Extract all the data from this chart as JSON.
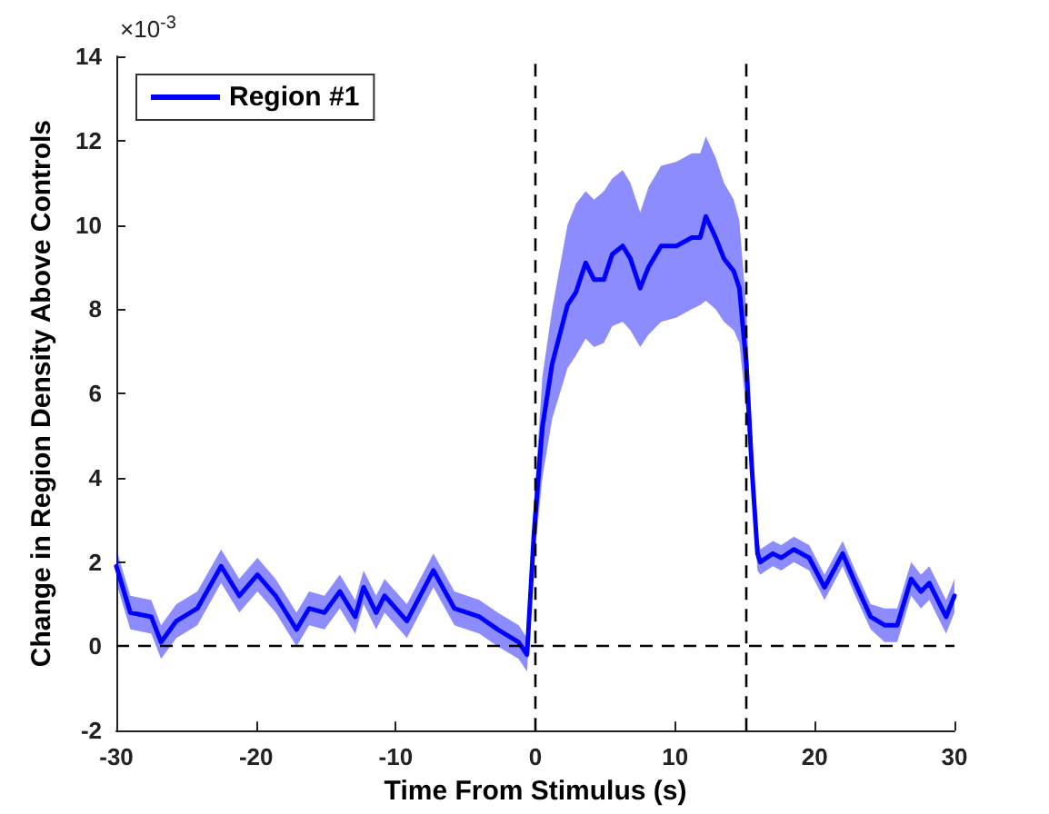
{
  "chart_data": {
    "type": "line",
    "xlabel": "Time From Stimulus (s)",
    "ylabel": "Change in Region Density Above Controls",
    "annotations": [
      "×10$^{-3}$"
    ],
    "xlim": [
      -30,
      30
    ],
    "xticks": [
      -30,
      -20,
      -10,
      0,
      10,
      20,
      30
    ],
    "ylim": [
      -2,
      14
    ],
    "yticks": [
      -2,
      0,
      2,
      4,
      6,
      8,
      10,
      12,
      14
    ],
    "grid": false,
    "legend": "top left",
    "marker": "none",
    "line_style": "solid",
    "ref_lines": [
      {
        "axis": "y",
        "value": 0,
        "label": null,
        "color": "#000000",
        "line_style": "dashed"
      },
      {
        "axis": "x",
        "value": 0,
        "label": null,
        "color": "#000000",
        "line_style": "dashed"
      },
      {
        "axis": "x",
        "value": 15,
        "label": null,
        "color": "#000000",
        "line_style": "dashed"
      }
    ],
    "series": [
      {
        "name": "Region #1",
        "color": "#0000ff",
        "x": [
          -30,
          -29,
          -27.5,
          -26.8,
          -25.7,
          -24.2,
          -22.5,
          -21.2,
          -19.9,
          -18.6,
          -17.1,
          -16.2,
          -15.1,
          -14,
          -12.9,
          -12.3,
          -11.4,
          -10.8,
          -9.2,
          -7.3,
          -5.8,
          -4,
          -2.7,
          -1.2,
          -0.6,
          -0.1,
          0.5,
          1.2,
          2.3,
          2.9,
          3.6,
          4.2,
          4.9,
          5.5,
          6.25,
          6.8,
          7.5,
          8.1,
          9,
          10.1,
          11.2,
          11.8,
          12.2,
          12.9,
          13.5,
          14.2,
          14.6,
          15.1,
          15.5,
          15.9,
          16.1,
          17,
          17.6,
          18.5,
          19.6,
          20.7,
          22,
          22.9,
          24,
          25,
          25.9,
          26.9,
          27.6,
          28.2,
          29.4,
          30
        ],
        "values": [
          1.9,
          0.8,
          0.7,
          0.1,
          0.6,
          0.9,
          1.9,
          1.2,
          1.7,
          1.2,
          0.4,
          0.9,
          0.8,
          1.3,
          0.7,
          1.4,
          0.8,
          1.2,
          0.6,
          1.8,
          0.9,
          0.7,
          0.4,
          0.1,
          -0.2,
          2.7,
          5.2,
          6.7,
          8.1,
          8.4,
          9.1,
          8.7,
          8.7,
          9.3,
          9.5,
          9.2,
          8.5,
          9.0,
          9.5,
          9.5,
          9.7,
          9.7,
          10.2,
          9.7,
          9.2,
          8.9,
          8.5,
          6.7,
          4.2,
          2.2,
          2.0,
          2.2,
          2.1,
          2.3,
          2.1,
          1.4,
          2.2,
          1.5,
          0.7,
          0.5,
          0.5,
          1.6,
          1.3,
          1.5,
          0.7,
          1.2
        ],
        "lower": [
          1.5,
          0.4,
          0.3,
          -0.3,
          0.2,
          0.5,
          1.5,
          0.8,
          1.3,
          0.8,
          0.0,
          0.5,
          0.4,
          0.9,
          0.3,
          1.0,
          0.4,
          0.8,
          0.2,
          1.4,
          0.5,
          0.3,
          0.0,
          -0.3,
          -0.6,
          2.0,
          4.0,
          5.4,
          6.6,
          6.9,
          7.3,
          7.1,
          7.2,
          7.6,
          7.7,
          7.5,
          7.1,
          7.4,
          7.7,
          7.8,
          8.0,
          8.1,
          8.2,
          8.0,
          7.7,
          7.5,
          7.2,
          5.6,
          3.6,
          1.8,
          1.7,
          1.9,
          1.8,
          2.0,
          1.8,
          1.1,
          1.9,
          1.2,
          0.4,
          0.1,
          0.1,
          1.2,
          0.9,
          1.1,
          0.3,
          0.8
        ],
        "upper": [
          2.3,
          1.2,
          1.1,
          0.5,
          1.0,
          1.3,
          2.3,
          1.6,
          2.1,
          1.6,
          0.8,
          1.3,
          1.2,
          1.7,
          1.1,
          1.8,
          1.2,
          1.6,
          1.0,
          2.2,
          1.3,
          1.1,
          0.8,
          0.5,
          0.2,
          3.4,
          6.4,
          8.0,
          10.0,
          10.5,
          10.8,
          10.6,
          10.8,
          11.1,
          11.3,
          11.0,
          10.3,
          10.9,
          11.4,
          11.5,
          11.7,
          11.7,
          12.1,
          11.6,
          11.0,
          10.6,
          10.1,
          8.0,
          5.0,
          2.6,
          2.3,
          2.5,
          2.4,
          2.6,
          2.4,
          1.7,
          2.5,
          1.8,
          1.0,
          0.9,
          0.9,
          2.0,
          1.7,
          1.9,
          1.1,
          1.6
        ]
      }
    ]
  }
}
